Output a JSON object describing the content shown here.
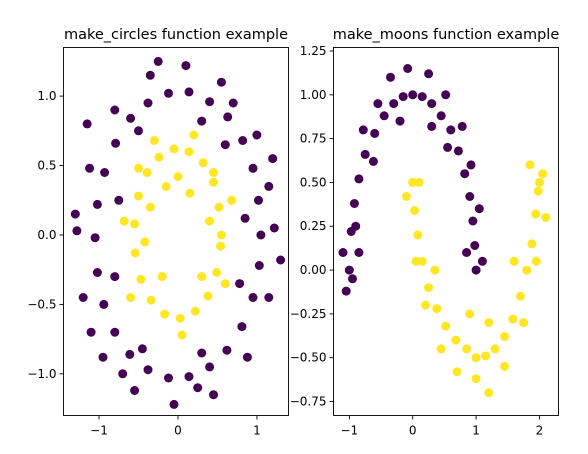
{
  "chart_data": [
    {
      "type": "scatter",
      "title": "make_circles function example",
      "xlabel": "",
      "ylabel": "",
      "xlim": [
        -1.45,
        1.4
      ],
      "ylim": [
        -1.3,
        1.35
      ],
      "xticks": [
        -1,
        0,
        1
      ],
      "yticks": [
        -1.0,
        -0.5,
        0.0,
        0.5,
        1.0
      ],
      "xtick_labels": [
        "−1",
        "0",
        "1"
      ],
      "ytick_labels": [
        "−1.0",
        "−0.5",
        "0.0",
        "0.5",
        "1.0"
      ],
      "grid": false,
      "legend": "none",
      "series": [
        {
          "color": "#440154",
          "points": [
            [
              1.05,
              0.0
            ],
            [
              1.02,
              0.25
            ],
            [
              0.95,
              0.48
            ],
            [
              0.82,
              0.68
            ],
            [
              0.63,
              0.85
            ],
            [
              0.4,
              0.96
            ],
            [
              0.14,
              1.03
            ],
            [
              -0.12,
              1.02
            ],
            [
              -0.38,
              0.95
            ],
            [
              -0.6,
              0.84
            ],
            [
              -0.79,
              0.66
            ],
            [
              -0.93,
              0.45
            ],
            [
              -1.02,
              0.22
            ],
            [
              -1.05,
              -0.02
            ],
            [
              -1.02,
              -0.27
            ],
            [
              -0.94,
              -0.5
            ],
            [
              -0.8,
              -0.7
            ],
            [
              -0.61,
              -0.86
            ],
            [
              -0.38,
              -0.97
            ],
            [
              -0.12,
              -1.03
            ],
            [
              0.14,
              -1.02
            ],
            [
              0.4,
              -0.95
            ],
            [
              0.62,
              -0.83
            ],
            [
              0.81,
              -0.66
            ],
            [
              0.95,
              -0.45
            ],
            [
              1.03,
              -0.22
            ],
            [
              1.22,
              0.05
            ],
            [
              1.15,
              0.35
            ],
            [
              1.0,
              0.72
            ],
            [
              0.55,
              1.1
            ],
            [
              0.1,
              1.22
            ],
            [
              -0.35,
              1.15
            ],
            [
              -0.8,
              0.9
            ],
            [
              -1.12,
              0.48
            ],
            [
              -1.28,
              0.03
            ],
            [
              -1.2,
              -0.45
            ],
            [
              -0.95,
              -0.88
            ],
            [
              -0.55,
              -1.12
            ],
            [
              -0.05,
              -1.22
            ],
            [
              0.45,
              -1.15
            ],
            [
              0.88,
              -0.88
            ],
            [
              1.15,
              -0.45
            ],
            [
              0.85,
              0.12
            ],
            [
              0.78,
              -0.35
            ],
            [
              0.6,
              0.65
            ],
            [
              -0.75,
              0.25
            ],
            [
              -0.8,
              -0.3
            ],
            [
              -0.5,
              0.75
            ],
            [
              -0.45,
              -0.82
            ],
            [
              0.3,
              0.82
            ],
            [
              0.3,
              -0.85
            ],
            [
              -1.3,
              0.15
            ],
            [
              -1.1,
              -0.7
            ],
            [
              1.2,
              0.55
            ],
            [
              1.3,
              -0.18
            ],
            [
              -0.25,
              1.25
            ],
            [
              0.25,
              -1.1
            ],
            [
              0.7,
              0.95
            ],
            [
              -0.7,
              -1.0
            ],
            [
              -1.15,
              0.8
            ]
          ]
        },
        {
          "color": "#fde725",
          "points": [
            [
              0.55,
              0.0
            ],
            [
              0.52,
              0.2
            ],
            [
              0.45,
              0.38
            ],
            [
              0.32,
              0.52
            ],
            [
              0.14,
              0.6
            ],
            [
              -0.05,
              0.62
            ],
            [
              -0.24,
              0.56
            ],
            [
              -0.39,
              0.45
            ],
            [
              -0.5,
              0.28
            ],
            [
              -0.55,
              0.08
            ],
            [
              -0.54,
              -0.13
            ],
            [
              -0.47,
              -0.32
            ],
            [
              -0.34,
              -0.47
            ],
            [
              -0.17,
              -0.57
            ],
            [
              0.03,
              -0.6
            ],
            [
              0.22,
              -0.55
            ],
            [
              0.38,
              -0.44
            ],
            [
              0.49,
              -0.27
            ],
            [
              0.54,
              -0.08
            ],
            [
              0.68,
              0.25
            ],
            [
              0.6,
              -0.35
            ],
            [
              0.2,
              0.72
            ],
            [
              -0.3,
              0.68
            ],
            [
              -0.68,
              0.1
            ],
            [
              -0.6,
              -0.45
            ],
            [
              0.05,
              -0.72
            ],
            [
              0.4,
              0.1
            ],
            [
              -0.35,
              0.2
            ],
            [
              -0.2,
              -0.3
            ],
            [
              0.3,
              -0.3
            ],
            [
              0.0,
              0.42
            ],
            [
              -0.42,
              -0.05
            ],
            [
              0.15,
              0.3
            ],
            [
              -0.15,
              0.35
            ],
            [
              0.45,
              0.45
            ],
            [
              -0.5,
              0.48
            ]
          ]
        }
      ]
    },
    {
      "type": "scatter",
      "title": "make_moons function example",
      "xlabel": "",
      "ylabel": "",
      "xlim": [
        -1.25,
        2.3
      ],
      "ylim": [
        -0.83,
        1.27
      ],
      "xticks": [
        -1,
        0,
        1,
        2
      ],
      "yticks": [
        -0.75,
        -0.5,
        -0.25,
        0.0,
        0.25,
        0.5,
        0.75,
        1.0,
        1.25
      ],
      "xtick_labels": [
        "−1",
        "0",
        "1",
        "2"
      ],
      "ytick_labels": [
        "−0.75",
        "−0.50",
        "−0.25",
        "0.00",
        "0.25",
        "0.50",
        "0.75",
        "1.00",
        "1.25"
      ],
      "grid": false,
      "legend": "none",
      "series": [
        {
          "color": "#440154",
          "points": [
            [
              -1.0,
              0.0
            ],
            [
              -0.97,
              0.22
            ],
            [
              -0.92,
              0.38
            ],
            [
              -0.85,
              0.52
            ],
            [
              -0.75,
              0.66
            ],
            [
              -0.6,
              0.78
            ],
            [
              -0.45,
              0.88
            ],
            [
              -0.3,
              0.95
            ],
            [
              -0.15,
              0.99
            ],
            [
              0.0,
              1.0
            ],
            [
              0.15,
              0.99
            ],
            [
              0.3,
              0.95
            ],
            [
              0.45,
              0.88
            ],
            [
              0.6,
              0.8
            ],
            [
              0.72,
              0.68
            ],
            [
              0.82,
              0.55
            ],
            [
              0.9,
              0.42
            ],
            [
              0.95,
              0.28
            ],
            [
              0.98,
              0.14
            ],
            [
              1.0,
              0.0
            ],
            [
              -1.1,
              0.1
            ],
            [
              -1.05,
              -0.12
            ],
            [
              -0.9,
              0.25
            ],
            [
              -0.78,
              0.8
            ],
            [
              -0.62,
              0.62
            ],
            [
              -0.35,
              1.1
            ],
            [
              -0.08,
              1.15
            ],
            [
              0.25,
              1.12
            ],
            [
              0.52,
              1.0
            ],
            [
              0.78,
              0.82
            ],
            [
              0.92,
              0.6
            ],
            [
              1.05,
              0.35
            ],
            [
              1.1,
              0.05
            ],
            [
              0.85,
              0.1
            ],
            [
              0.55,
              0.7
            ],
            [
              -0.2,
              0.85
            ],
            [
              -0.55,
              0.95
            ],
            [
              0.3,
              0.82
            ],
            [
              -0.85,
              0.1
            ],
            [
              -0.95,
              -0.05
            ]
          ]
        },
        {
          "color": "#fde725",
          "points": [
            [
              0.0,
              0.5
            ],
            [
              0.03,
              0.34
            ],
            [
              0.08,
              0.2
            ],
            [
              0.15,
              0.05
            ],
            [
              0.25,
              -0.1
            ],
            [
              0.38,
              -0.22
            ],
            [
              0.52,
              -0.32
            ],
            [
              0.68,
              -0.4
            ],
            [
              0.85,
              -0.45
            ],
            [
              1.0,
              -0.5
            ],
            [
              1.15,
              -0.49
            ],
            [
              1.3,
              -0.45
            ],
            [
              1.45,
              -0.38
            ],
            [
              1.58,
              -0.28
            ],
            [
              1.7,
              -0.15
            ],
            [
              1.8,
              0.0
            ],
            [
              1.88,
              0.15
            ],
            [
              1.94,
              0.32
            ],
            [
              1.98,
              0.45
            ],
            [
              2.0,
              0.5
            ],
            [
              -0.1,
              0.42
            ],
            [
              0.1,
              0.5
            ],
            [
              0.2,
              -0.2
            ],
            [
              0.45,
              -0.45
            ],
            [
              0.7,
              -0.58
            ],
            [
              1.0,
              -0.62
            ],
            [
              1.2,
              -0.7
            ],
            [
              1.45,
              -0.55
            ],
            [
              1.75,
              -0.3
            ],
            [
              1.95,
              0.05
            ],
            [
              2.1,
              0.3
            ],
            [
              1.85,
              0.6
            ],
            [
              2.05,
              0.55
            ],
            [
              0.05,
              0.05
            ],
            [
              0.35,
              0.0
            ],
            [
              1.2,
              -0.3
            ],
            [
              1.6,
              0.05
            ],
            [
              0.9,
              -0.25
            ]
          ]
        }
      ]
    }
  ]
}
